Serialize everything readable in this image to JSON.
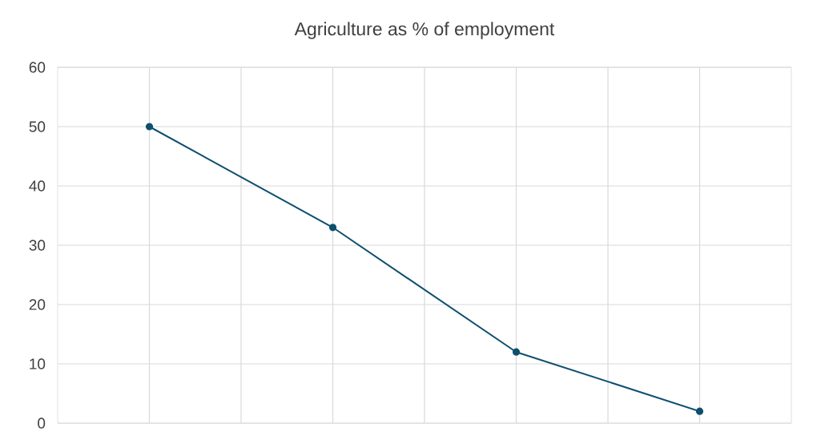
{
  "chart_data": {
    "type": "line",
    "title": "Agriculture as % of employment",
    "categories": [
      null,
      null,
      null,
      null
    ],
    "series": [
      {
        "color": "#0e4f6e",
        "values": [
          50,
          33,
          12,
          2
        ]
      }
    ],
    "ylim": [
      0,
      60
    ],
    "yticks": [
      0,
      10,
      20,
      30,
      40,
      50,
      60
    ],
    "grid": true,
    "marker": "circle",
    "line_style": "solid"
  }
}
